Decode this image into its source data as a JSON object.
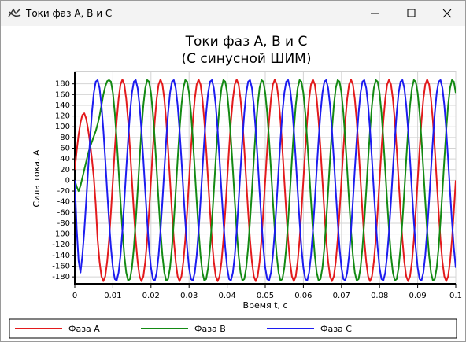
{
  "window": {
    "title": "Токи фаз А, В и С"
  },
  "chart_data": {
    "type": "line",
    "title": "Токи фаз А, В и С",
    "subtitle": "(С синусной ШИМ)",
    "x_label": "Время t, c",
    "y_label": "Сила тока, А",
    "x": [
      0,
      0.0005,
      0.001,
      0.0015,
      0.002,
      0.0025,
      0.003,
      0.0035,
      0.004,
      0.0045,
      0.005,
      0.0055,
      0.006,
      0.0065,
      0.007,
      0.0075,
      0.008,
      0.0085,
      0.009,
      0.0095,
      0.01,
      0.0105,
      0.011,
      0.0115,
      0.012,
      0.0125,
      0.013,
      0.0135,
      0.014,
      0.0145,
      0.015,
      0.0155,
      0.016,
      0.0165,
      0.017,
      0.0175,
      0.018,
      0.0185,
      0.019,
      0.0195,
      0.02,
      0.0205,
      0.021,
      0.0215,
      0.022,
      0.0225,
      0.023,
      0.0235,
      0.024,
      0.0245,
      0.025,
      0.0255,
      0.026,
      0.0265,
      0.027,
      0.0275,
      0.028,
      0.0285,
      0.029,
      0.0295,
      0.03,
      0.0305,
      0.031,
      0.0315,
      0.032,
      0.0325,
      0.033,
      0.0335,
      0.034,
      0.0345,
      0.035,
      0.0355,
      0.036,
      0.0365,
      0.037,
      0.0375,
      0.038,
      0.0385,
      0.039,
      0.0395,
      0.04,
      0.0405,
      0.041,
      0.0415,
      0.042,
      0.0425,
      0.043,
      0.0435,
      0.044,
      0.0445,
      0.045,
      0.0455,
      0.046,
      0.0465,
      0.047,
      0.0475,
      0.048,
      0.0485,
      0.049,
      0.0495,
      0.05,
      0.0505,
      0.051,
      0.0515,
      0.052,
      0.0525,
      0.053,
      0.0535,
      0.054,
      0.0545,
      0.055,
      0.0555,
      0.056,
      0.0565,
      0.057,
      0.0575,
      0.058,
      0.0585,
      0.059,
      0.0595,
      0.06,
      0.0605,
      0.061,
      0.0615,
      0.062,
      0.0625,
      0.063,
      0.0635,
      0.064,
      0.0645,
      0.065,
      0.0655,
      0.066,
      0.0665,
      0.067,
      0.0675,
      0.068,
      0.0685,
      0.069,
      0.0695,
      0.07,
      0.0705,
      0.071,
      0.0715,
      0.072,
      0.0725,
      0.073,
      0.0735,
      0.074,
      0.0745,
      0.075,
      0.0755,
      0.076,
      0.0765,
      0.077,
      0.0775,
      0.078,
      0.0785,
      0.079,
      0.0795,
      0.08,
      0.0805,
      0.081,
      0.0815,
      0.082,
      0.0825,
      0.083,
      0.0835,
      0.084,
      0.0845,
      0.085,
      0.0855,
      0.086,
      0.0865,
      0.087,
      0.0875,
      0.088,
      0.0885,
      0.089,
      0.0895,
      0.09,
      0.0905,
      0.091,
      0.0915,
      0.092,
      0.0925,
      0.093,
      0.0935,
      0.094,
      0.0945,
      0.095,
      0.0955,
      0.096,
      0.0965,
      0.097,
      0.0975,
      0.098,
      0.0985,
      0.099,
      0.0995,
      0.1
    ],
    "series": [
      {
        "name": "Фаза А",
        "color": "#e31a1c",
        "values": [
          20,
          55,
          85,
          108,
          122,
          125,
          115,
          95,
          70,
          40,
          5,
          -45,
          -111,
          -152,
          -179,
          -188,
          -179,
          -152,
          -111,
          -58,
          0,
          58,
          111,
          152,
          179,
          188,
          179,
          152,
          111,
          58,
          0,
          -58,
          -111,
          -152,
          -179,
          -188,
          -179,
          -152,
          -111,
          -58,
          0,
          58,
          111,
          152,
          179,
          188,
          179,
          152,
          111,
          58,
          0,
          -58,
          -111,
          -152,
          -179,
          -188,
          -179,
          -152,
          -111,
          -58,
          0,
          58,
          111,
          152,
          179,
          188,
          179,
          152,
          111,
          58,
          0,
          -58,
          -111,
          -152,
          -179,
          -188,
          -179,
          -152,
          -111,
          -58,
          0,
          58,
          111,
          152,
          179,
          188,
          179,
          152,
          111,
          58,
          0,
          -58,
          -111,
          -152,
          -179,
          -188,
          -179,
          -152,
          -111,
          -58,
          0,
          58,
          111,
          152,
          179,
          188,
          179,
          152,
          111,
          58,
          0,
          -58,
          -111,
          -152,
          -179,
          -188,
          -179,
          -152,
          -111,
          -58,
          0,
          58,
          111,
          152,
          179,
          188,
          179,
          152,
          111,
          58,
          0,
          -58,
          -111,
          -152,
          -179,
          -188,
          -179,
          -152,
          -111,
          -58,
          0,
          58,
          111,
          152,
          179,
          188,
          179,
          152,
          111,
          58,
          0,
          -58,
          -111,
          -152,
          -179,
          -188,
          -179,
          -152,
          -111,
          -58,
          0,
          58,
          111,
          152,
          179,
          188,
          179,
          152,
          111,
          58,
          0,
          -58,
          -111,
          -152,
          -179,
          -188,
          -179,
          -152,
          -111,
          -58,
          0,
          58,
          111,
          152,
          179,
          188,
          179,
          152,
          111,
          58,
          0,
          -58,
          -111,
          -152,
          -179,
          -188,
          -179,
          -152,
          -111,
          -58,
          0
        ]
      },
      {
        "name": "Фаза В",
        "color": "#138a13",
        "values": [
          0,
          -12,
          -20,
          -10,
          5,
          20,
          35,
          50,
          62,
          72,
          82,
          92,
          105,
          120,
          140,
          160,
          175,
          185,
          187,
          184,
          163,
          126,
          76,
          20,
          -39,
          -94,
          -140,
          -172,
          -187,
          -184,
          -163,
          -126,
          -76,
          -20,
          39,
          94,
          140,
          172,
          187,
          184,
          163,
          126,
          76,
          20,
          -39,
          -94,
          -140,
          -172,
          -187,
          -184,
          -163,
          -126,
          -76,
          -20,
          39,
          94,
          140,
          172,
          187,
          184,
          163,
          126,
          76,
          20,
          -39,
          -94,
          -140,
          -172,
          -187,
          -184,
          -163,
          -126,
          -76,
          -20,
          39,
          94,
          140,
          172,
          187,
          184,
          163,
          126,
          76,
          20,
          -39,
          -94,
          -140,
          -172,
          -187,
          -184,
          -163,
          -126,
          -76,
          -20,
          39,
          94,
          140,
          172,
          187,
          184,
          163,
          126,
          76,
          20,
          -39,
          -94,
          -140,
          -172,
          -187,
          -184,
          -163,
          -126,
          -76,
          -20,
          39,
          94,
          140,
          172,
          187,
          184,
          163,
          126,
          76,
          20,
          -39,
          -94,
          -140,
          -172,
          -187,
          -184,
          -163,
          -126,
          -76,
          -20,
          39,
          94,
          140,
          172,
          187,
          184,
          163,
          126,
          76,
          20,
          -39,
          -94,
          -140,
          -172,
          -187,
          -184,
          -163,
          -126,
          -76,
          -20,
          39,
          94,
          140,
          172,
          187,
          184,
          163,
          126,
          76,
          20,
          -39,
          -94,
          -140,
          -172,
          -187,
          -184,
          -163,
          -126,
          -76,
          -20,
          39,
          94,
          140,
          172,
          187,
          184,
          163,
          126,
          76,
          20,
          -39,
          -94,
          -140,
          -172,
          -187,
          -184,
          -163,
          -126,
          -76,
          -20,
          39,
          94,
          140,
          172,
          187,
          184,
          163
        ]
      },
      {
        "name": "Фаза С",
        "color": "#1c1cf0",
        "values": [
          0,
          -90,
          -150,
          -172,
          -140,
          -94,
          -39,
          20,
          76,
          126,
          163,
          184,
          187,
          172,
          140,
          94,
          39,
          -20,
          -76,
          -126,
          -163,
          -184,
          -187,
          -172,
          -140,
          -94,
          -39,
          20,
          76,
          126,
          163,
          184,
          187,
          172,
          140,
          94,
          39,
          -20,
          -76,
          -126,
          -163,
          -184,
          -187,
          -172,
          -140,
          -94,
          -39,
          20,
          76,
          126,
          163,
          184,
          187,
          172,
          140,
          94,
          39,
          -20,
          -76,
          -126,
          -163,
          -184,
          -187,
          -172,
          -140,
          -94,
          -39,
          20,
          76,
          126,
          163,
          184,
          187,
          172,
          140,
          94,
          39,
          -20,
          -76,
          -126,
          -163,
          -184,
          -187,
          -172,
          -140,
          -94,
          -39,
          20,
          76,
          126,
          163,
          184,
          187,
          172,
          140,
          94,
          39,
          -20,
          -76,
          -126,
          -163,
          -184,
          -187,
          -172,
          -140,
          -94,
          -39,
          20,
          76,
          126,
          163,
          184,
          187,
          172,
          140,
          94,
          39,
          -20,
          -76,
          -126,
          -163,
          -184,
          -187,
          -172,
          -140,
          -94,
          -39,
          20,
          76,
          126,
          163,
          184,
          187,
          172,
          140,
          94,
          39,
          -20,
          -76,
          -126,
          -163,
          -184,
          -187,
          -172,
          -140,
          -94,
          -39,
          20,
          76,
          126,
          163,
          184,
          187,
          172,
          140,
          94,
          39,
          -20,
          -76,
          -126,
          -163,
          -184,
          -187,
          -172,
          -140,
          -94,
          -39,
          20,
          76,
          126,
          163,
          184,
          187,
          172,
          140,
          94,
          39,
          -20,
          -76,
          -126,
          -163,
          -184,
          -187,
          -172,
          -140,
          -94,
          -39,
          20,
          76,
          126,
          163,
          184,
          187,
          172,
          140,
          94,
          39,
          -20,
          -76,
          -126,
          -163
        ]
      }
    ],
    "xlim": [
      0,
      0.1
    ],
    "xticks": [
      0,
      0.01,
      0.02,
      0.03,
      0.04,
      0.05,
      0.06,
      0.07,
      0.08,
      0.09,
      0.1
    ],
    "ylim": [
      -193,
      203
    ],
    "yticks": [
      -180,
      -160,
      -140,
      -120,
      -100,
      -80,
      -60,
      -40,
      -20,
      0,
      20,
      40,
      60,
      80,
      100,
      120,
      140,
      160,
      180
    ],
    "grid": true,
    "legend": "bottom"
  }
}
